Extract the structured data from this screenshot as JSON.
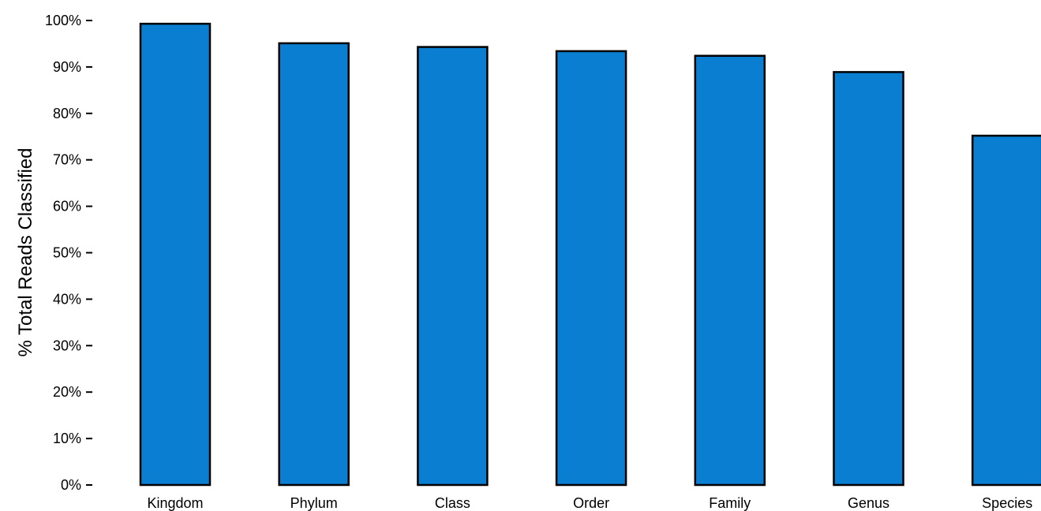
{
  "chart_data": {
    "type": "bar",
    "title": "",
    "xlabel": "",
    "ylabel": "% Total Reads Classified",
    "categories": [
      "Kingdom",
      "Phylum",
      "Class",
      "Order",
      "Family",
      "Genus",
      "Species"
    ],
    "values": [
      99.3,
      95.1,
      94.3,
      93.4,
      92.4,
      88.9,
      75.2
    ],
    "ylim": [
      0,
      100
    ],
    "yticks": [
      0,
      10,
      20,
      30,
      40,
      50,
      60,
      70,
      80,
      90,
      100
    ],
    "ytick_labels": [
      "0%",
      "10%",
      "20%",
      "30%",
      "40%",
      "50%",
      "60%",
      "70%",
      "80%",
      "90%",
      "100%"
    ],
    "grid": false,
    "legend": "none",
    "colors": {
      "bar_fill": "#0a7fd1",
      "bar_stroke": "#000000"
    }
  }
}
